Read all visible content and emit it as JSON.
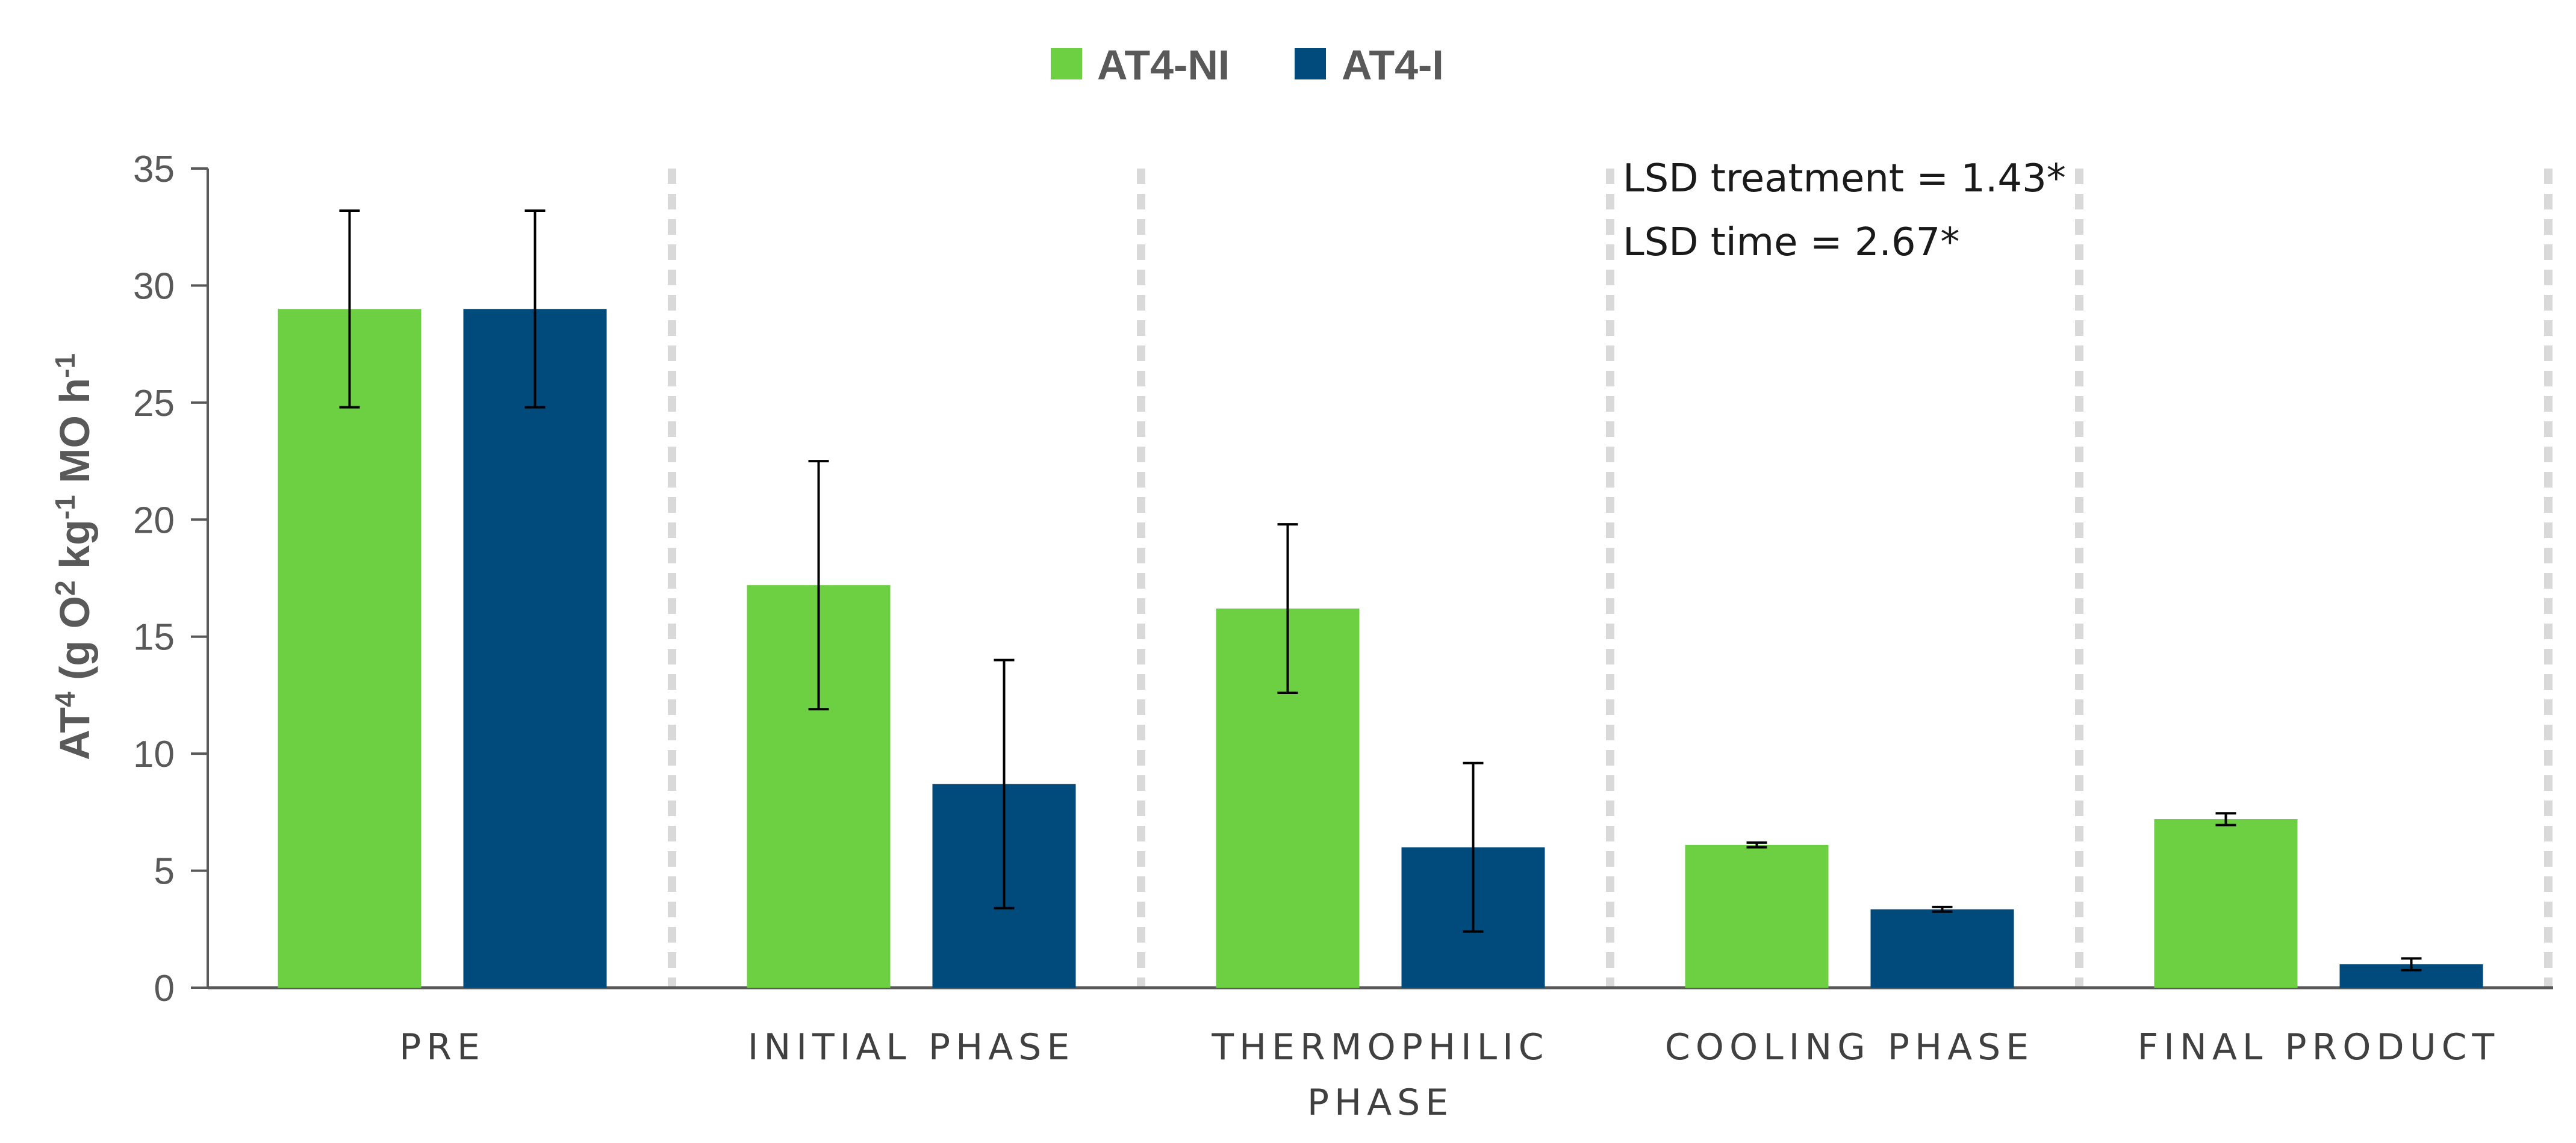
{
  "chart_data": {
    "type": "bar",
    "title": "",
    "xlabel": "",
    "ylabel": {
      "base": "AT",
      "sup_a": "4",
      "mid": " (g O",
      "sup_b": "2",
      "mid2": " kg",
      "sup_c": "-1",
      "end": " MO h",
      "sup_d": "-1"
    },
    "ylim": [
      0,
      35
    ],
    "yticks": [
      0,
      5,
      10,
      15,
      20,
      25,
      30,
      35
    ],
    "categories": [
      [
        "PRE"
      ],
      [
        "INITIAL PHASE"
      ],
      [
        "THERMOPHILIC",
        "PHASE"
      ],
      [
        "COOLING PHASE"
      ],
      [
        "FINAL PRODUCT"
      ]
    ],
    "series": [
      {
        "name": "AT4-NI",
        "color": "#6dd043",
        "values": [
          29.0,
          17.2,
          16.2,
          6.1,
          7.2
        ],
        "errors": [
          4.2,
          5.3,
          3.6,
          0.1,
          0.25
        ]
      },
      {
        "name": "AT4-I",
        "color": "#004a7c",
        "values": [
          29.0,
          8.7,
          6.0,
          3.35,
          1.0
        ],
        "errors": [
          4.2,
          5.3,
          3.6,
          0.1,
          0.25
        ]
      }
    ],
    "legend_position": "top-center",
    "grid": false,
    "annotations": [
      "LSD treatment = 1.43*",
      "LSD time = 2.67*"
    ]
  }
}
